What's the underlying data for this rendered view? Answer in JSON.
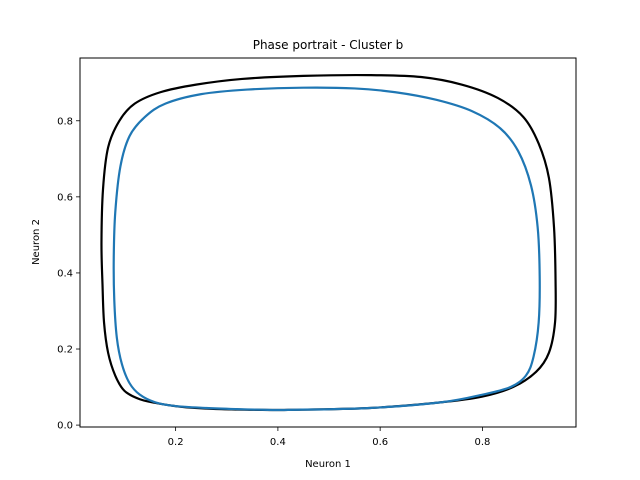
{
  "chart_data": {
    "type": "line",
    "title": "Phase portrait - Cluster b",
    "xlabel": "Neuron 1",
    "ylabel": "Neuron 2",
    "xlim": [
      0.013,
      0.983
    ],
    "ylim": [
      -0.005,
      0.965
    ],
    "xticks": [
      0.2,
      0.4,
      0.6,
      0.8
    ],
    "yticks": [
      0.0,
      0.2,
      0.4,
      0.6,
      0.8
    ],
    "xtick_labels": [
      "0.2",
      "0.4",
      "0.6",
      "0.8"
    ],
    "ytick_labels": [
      "0.0",
      "0.2",
      "0.4",
      "0.6",
      "0.8"
    ],
    "grid": false,
    "legend": "none",
    "series": [
      {
        "color": "#000000",
        "closed": true,
        "x": [
          0.42,
          0.58,
          0.72,
          0.8,
          0.86,
          0.905,
          0.93,
          0.942,
          0.943,
          0.94,
          0.93,
          0.91,
          0.88,
          0.83,
          0.76,
          0.68,
          0.58,
          0.45,
          0.33,
          0.24,
          0.17,
          0.12,
          0.09,
          0.068,
          0.058,
          0.055,
          0.057,
          0.06,
          0.068,
          0.082,
          0.1,
          0.13,
          0.17,
          0.22,
          0.29,
          0.37
        ],
        "y": [
          0.04,
          0.045,
          0.06,
          0.075,
          0.1,
          0.14,
          0.19,
          0.27,
          0.38,
          0.52,
          0.65,
          0.74,
          0.81,
          0.86,
          0.895,
          0.915,
          0.92,
          0.918,
          0.91,
          0.895,
          0.875,
          0.845,
          0.8,
          0.73,
          0.62,
          0.48,
          0.37,
          0.27,
          0.19,
          0.13,
          0.09,
          0.068,
          0.056,
          0.047,
          0.042,
          0.04
        ]
      },
      {
        "color": "#1f77b4",
        "closed": true,
        "x": [
          0.42,
          0.58,
          0.72,
          0.8,
          0.855,
          0.885,
          0.9,
          0.91,
          0.912,
          0.908,
          0.895,
          0.87,
          0.835,
          0.78,
          0.71,
          0.63,
          0.55,
          0.45,
          0.34,
          0.25,
          0.18,
          0.14,
          0.11,
          0.092,
          0.082,
          0.079,
          0.08,
          0.085,
          0.095,
          0.11,
          0.13,
          0.16,
          0.2,
          0.26,
          0.32,
          0.38
        ],
        "y": [
          0.04,
          0.045,
          0.06,
          0.08,
          0.1,
          0.13,
          0.18,
          0.27,
          0.39,
          0.52,
          0.63,
          0.72,
          0.78,
          0.825,
          0.855,
          0.875,
          0.885,
          0.887,
          0.882,
          0.87,
          0.845,
          0.81,
          0.76,
          0.68,
          0.56,
          0.44,
          0.33,
          0.23,
          0.16,
          0.11,
          0.08,
          0.06,
          0.05,
          0.045,
          0.042,
          0.04
        ]
      }
    ]
  }
}
